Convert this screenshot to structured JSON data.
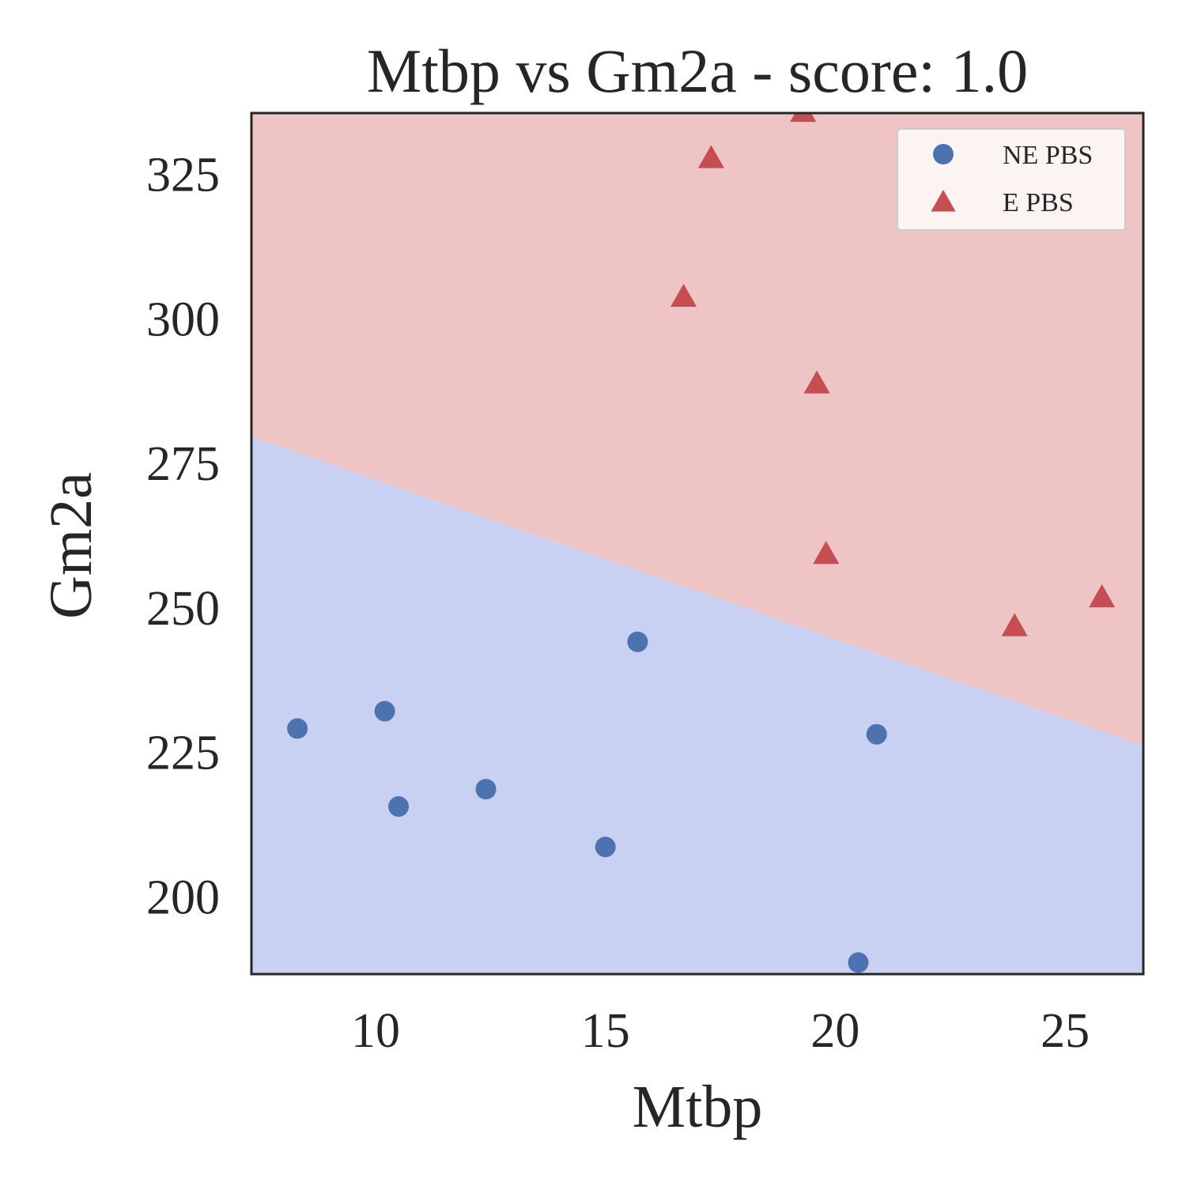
{
  "chart_data": {
    "type": "scatter",
    "title": "Mtbp vs Gm2a - score: 1.0",
    "xlabel": "Mtbp",
    "ylabel": "Gm2a",
    "xlim": [
      7.3,
      26.7
    ],
    "ylim": [
      186.5,
      335.5
    ],
    "xticks": [
      10,
      15,
      20,
      25
    ],
    "yticks": [
      200,
      225,
      250,
      275,
      300,
      325
    ],
    "xtick_labels": [
      "10",
      "15",
      "20",
      "25"
    ],
    "ytick_labels": [
      "200",
      "225",
      "250",
      "275",
      "300",
      "325"
    ],
    "grid": false,
    "legend_position": "top-right",
    "decision_boundary": {
      "points": [
        [
          7.3,
          279.5
        ],
        [
          26.7,
          226.0
        ]
      ],
      "lower_region": "NE PBS",
      "upper_region": "E PBS"
    },
    "regions": {
      "lower_color": "#c9d1f2",
      "upper_color": "#eec4c4"
    },
    "series": [
      {
        "name": "NE PBS",
        "marker": "circle",
        "color": "#4c72b0",
        "points": [
          [
            8.3,
            229.0
          ],
          [
            10.2,
            232.0
          ],
          [
            10.5,
            215.5
          ],
          [
            12.4,
            218.5
          ],
          [
            15.0,
            208.5
          ],
          [
            15.7,
            244.0
          ],
          [
            20.5,
            188.5
          ],
          [
            20.9,
            228.0
          ]
        ]
      },
      {
        "name": "E PBS",
        "marker": "triangle",
        "color": "#c44e52",
        "points": [
          [
            16.7,
            303.5
          ],
          [
            17.3,
            327.5
          ],
          [
            19.3,
            335.5
          ],
          [
            19.6,
            288.5
          ],
          [
            19.8,
            259.0
          ],
          [
            23.9,
            246.5
          ],
          [
            25.8,
            251.5
          ]
        ]
      }
    ]
  }
}
